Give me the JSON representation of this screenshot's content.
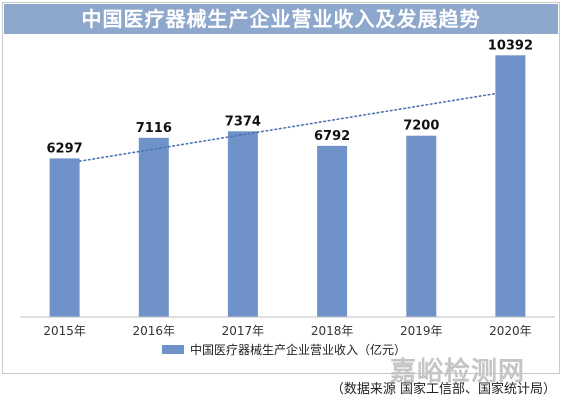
{
  "chart_data": {
    "type": "bar",
    "title": "中国医疗器械生产企业营业收入及发展趋势",
    "categories": [
      "2015年",
      "2016年",
      "2017年",
      "2018年",
      "2019年",
      "2020年"
    ],
    "series": [
      {
        "name": "中国医疗器械生产企业营业收入（亿元）",
        "values": [
          6297,
          7116,
          7374,
          6792,
          7200,
          10392
        ],
        "color": "#6f93c8"
      }
    ],
    "data_labels": [
      "6297",
      "7116",
      "7374",
      "6792",
      "7200",
      "10392"
    ],
    "trendline": {
      "style": "dotted",
      "color": "#4a73b0"
    },
    "ylim": [
      0,
      10800
    ],
    "grid": false,
    "legend": "bottom",
    "xlabel": "",
    "ylabel": ""
  },
  "source_note": "（数据来源  国家工信部、国家统计局）",
  "watermark": "嘉峪检测网"
}
